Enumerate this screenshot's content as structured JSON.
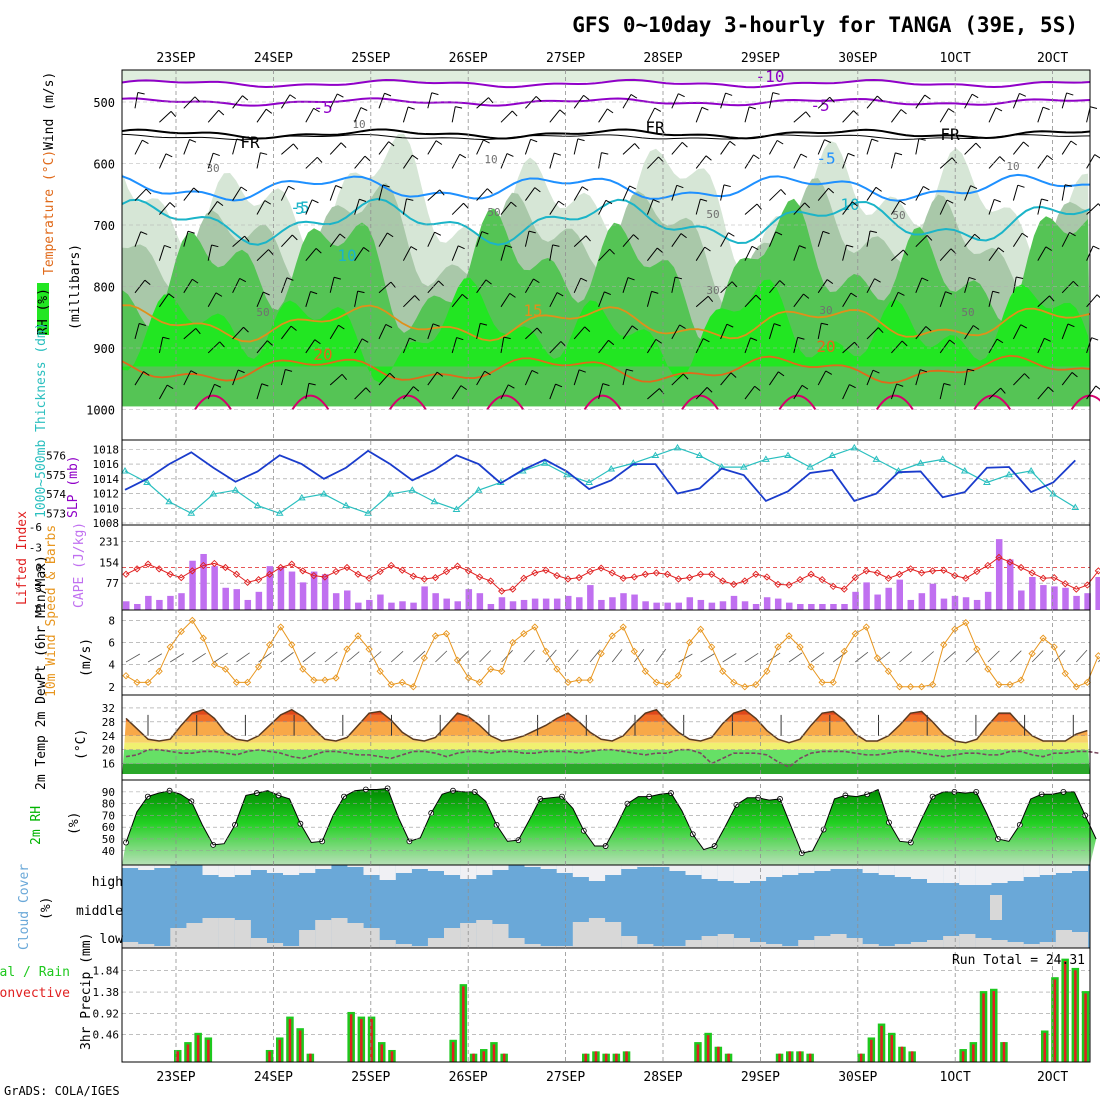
{
  "title": "GFS 0~10day 3-hourly for TANGA (39E, 5S)",
  "footer": "GrADS: COLA/IGES",
  "dates": [
    "23SEP",
    "24SEP",
    "25SEP",
    "26SEP",
    "27SEP",
    "28SEP",
    "29SEP",
    "30SEP",
    "1OCT",
    "2OCT"
  ],
  "colors": {
    "rh_light": "#d6e6d6",
    "rh_mid": "#a9c8a9",
    "rh_green": "#55c455",
    "rh_bright": "#22e622",
    "temp_purple": "#9000c8",
    "temp_black": "#000000",
    "temp_blue": "#1e90ff",
    "temp_cyan": "#1bb4c8",
    "temp_orange": "#e0901a",
    "temp_dark_orange": "#e06a1a",
    "temp_magenta": "#d4006c",
    "slp": "#1a3ccc",
    "thickness": "#2abfbf",
    "cape": "#c070f0",
    "lifted_index": "#e02020",
    "wind10m": "#e8961e",
    "rh2m": "#00b400",
    "cloud_bg": "#6aa8d8",
    "cloud_white": "#f0f0f4",
    "precip_total": "#1ec81e",
    "precip_conv": "#e02020"
  },
  "panels": {
    "upper": {
      "ylabel_rh": "RH (%)",
      "ylabel_temp": "Temperature (°C)",
      "ylabel_wind": "Wind (m/s)",
      "ylabel_p": "(millibars)",
      "yticks": [
        "500",
        "600",
        "700",
        "800",
        "900",
        "1000"
      ],
      "contour_labels": [
        "-10",
        "-5",
        "-5",
        "-5",
        "FR",
        "FR",
        "FR",
        "-5",
        "5",
        "10",
        "10",
        "15",
        "20",
        "20"
      ],
      "rh_labels": [
        "50",
        "30",
        "10",
        "50",
        "10",
        "30",
        "50",
        "50",
        "30",
        "10",
        "50"
      ]
    },
    "slp": {
      "ylabel_left": "1000~500mb Thickness (dm)",
      "ylabel_right": "SLP (mb)",
      "yticks_left": [
        "576",
        "575",
        "574",
        "573"
      ],
      "yticks_right": [
        "1018",
        "1016",
        "1014",
        "1012",
        "1010",
        "1008"
      ]
    },
    "cape": {
      "ylabel_left": "Lifted Index",
      "ylabel_right": "CAPE (J/kg)",
      "yticks_left": [
        "-6",
        "-3",
        "0",
        "3",
        "6"
      ],
      "yticks_right": [
        "231",
        "154",
        "77"
      ]
    },
    "wind10m": {
      "ylabel": "10m Wind Speed & Barbs",
      "ylabel_unit": "(m/s)",
      "yticks": [
        "8",
        "6",
        "4",
        "2"
      ]
    },
    "temp2m": {
      "ylabel": "2m Temp 2m DewPt (6hr Min/Max)",
      "ylabel_unit": "(°C)",
      "yticks": [
        "32",
        "28",
        "24",
        "20",
        "16"
      ]
    },
    "rh2m": {
      "ylabel": "2m RH",
      "ylabel_unit": "(%)",
      "yticks": [
        "90",
        "80",
        "70",
        "60",
        "50",
        "40"
      ]
    },
    "cloud": {
      "ylabel": "Cloud Cover",
      "ylabel_unit": "(%)",
      "levels": [
        "high",
        "middle",
        "low"
      ]
    },
    "precip": {
      "ylabel_left": "Total / Rain",
      "ylabel_left2": "Convective",
      "ylabel": "3hr Precip (mm)",
      "yticks": [
        "1.84",
        "1.38",
        "0.92",
        "0.46"
      ],
      "run_total": "Run Total = 24.31"
    }
  },
  "chart_data": [
    {
      "type": "line",
      "title": "SLP (mb)",
      "ylim": [
        1008,
        1019
      ],
      "x_step_hours": 6,
      "values": [
        1012.5,
        1014,
        1016,
        1017.6,
        1015.5,
        1013.6,
        1015,
        1017.2,
        1016,
        1014,
        1015.5,
        1017.8,
        1016,
        1013.8,
        1015.2,
        1017.2,
        1016,
        1013.4,
        1015.2,
        1016.6,
        1015,
        1012.6,
        1013.8,
        1016,
        1016,
        1012,
        1012.7,
        1015.4,
        1014.5,
        1011,
        1012.3,
        1014.8,
        1015.2,
        1011,
        1012,
        1014.9,
        1015,
        1011.5,
        1012.2,
        1015.5,
        1015.6,
        1012.2,
        1013.5,
        1016.5
      ]
    },
    {
      "type": "line",
      "title": "1000~500mb Thickness (dm)",
      "ylim": [
        572.6,
        576.6
      ],
      "x_step_hours": 6,
      "values": [
        575.2,
        574.6,
        573.6,
        573.0,
        574.0,
        574.2,
        573.4,
        573.0,
        573.8,
        574.0,
        573.4,
        573.0,
        574.0,
        574.2,
        573.6,
        573.2,
        574.2,
        574.6,
        575.2,
        575.6,
        575.0,
        574.6,
        575.3,
        575.6,
        576.0,
        576.4,
        576.0,
        575.4,
        575.4,
        575.8,
        576.0,
        575.4,
        576.0,
        576.4,
        575.8,
        575.2,
        575.6,
        575.8,
        575.2,
        574.6,
        575.0,
        575.2,
        574.0,
        573.3
      ]
    },
    {
      "type": "bar",
      "title": "CAPE (J/kg)",
      "ylim": [
        0,
        270
      ],
      "x_step_hours": 3,
      "values": [
        10,
        0,
        30,
        15,
        30,
        40,
        160,
        185,
        140,
        60,
        55,
        15,
        45,
        140,
        135,
        120,
        80,
        120,
        110,
        40,
        50,
        5,
        15,
        35,
        5,
        10,
        5,
        65,
        40,
        20,
        10,
        55,
        40,
        0,
        25,
        10,
        15,
        20,
        20,
        20,
        30,
        25,
        70,
        15,
        25,
        40,
        35,
        10,
        5,
        5,
        5,
        25,
        15,
        5,
        10,
        30,
        10,
        0,
        25,
        20,
        5,
        0,
        0,
        0,
        0,
        0,
        45,
        80,
        35,
        60,
        90,
        15,
        40,
        75,
        20,
        30,
        25,
        15,
        45,
        240,
        165,
        50,
        100,
        70,
        65,
        60,
        30,
        40,
        100
      ]
    },
    {
      "type": "line",
      "title": "Lifted Index",
      "ylim": [
        6,
        -6
      ],
      "x_step_hours": 3,
      "values": [
        1,
        0.2,
        -0.5,
        0.2,
        1,
        1.5,
        0.5,
        -0.3,
        -0.6,
        0,
        1,
        2.2,
        1.8,
        1,
        0,
        -0.5,
        0.5,
        1.2,
        1.4,
        0.6,
        0,
        1,
        1.6,
        0.6,
        -0.3,
        0.4,
        1.3,
        1.7,
        1.5,
        0.6,
        -0.2,
        0.5,
        1.4,
        2,
        3.5,
        3.2,
        1.6,
        0.8,
        0.4,
        1.2,
        1.7,
        1.5,
        0.6,
        0.1,
        0.8,
        1.6,
        1.4,
        1,
        0.8,
        1,
        1.7,
        1.5,
        1,
        1,
        2,
        2.5,
        2,
        1,
        1.4,
        2.5,
        2.6,
        1.8,
        1,
        1.8,
        2.8,
        3.2,
        1.5,
        0.5,
        0.8,
        1.6,
        1,
        0.2,
        0.8,
        0.5,
        0.4,
        1.2,
        1.6,
        0.6,
        -0.3,
        -1.5,
        -0.8,
        0,
        0.8,
        1.6,
        1.5,
        2.4,
        3.2,
        2.6,
        0.5
      ]
    },
    {
      "type": "line",
      "title": "10m Wind Speed (m/s)",
      "ylim": [
        1.8,
        8.4
      ],
      "x_step_hours": 3,
      "values": [
        3,
        2.4,
        2.4,
        3.4,
        5.6,
        7,
        8,
        6.4,
        4,
        3.6,
        2.4,
        2.4,
        3.8,
        5.8,
        7.4,
        5.8,
        3.6,
        2.6,
        2.6,
        2.8,
        5.4,
        6.6,
        5.4,
        3.4,
        2.2,
        2.4,
        2,
        4.6,
        6.6,
        6.8,
        4.4,
        2.8,
        2.4,
        3.6,
        3.4,
        6,
        6.8,
        7.4,
        5.2,
        3.6,
        2.4,
        2.6,
        2.6,
        5,
        6.6,
        7.4,
        5.2,
        3.4,
        2.4,
        2.2,
        3,
        6,
        7.2,
        5.6,
        3.4,
        2.4,
        2,
        2.2,
        3.4,
        5.6,
        6.6,
        5.6,
        3.8,
        2.4,
        2.4,
        5.2,
        6.8,
        7.4,
        4.6,
        3.4,
        2,
        2,
        2,
        2.2,
        5.8,
        7.2,
        7.8,
        5.4,
        3.6,
        2.2,
        2.2,
        2.6,
        5,
        6.4,
        5.6,
        3.2,
        2,
        2.4,
        4.8
      ]
    },
    {
      "type": "area",
      "title": "2m Temp (°C)",
      "ylim": [
        13,
        34
      ],
      "x_step_hours": 3,
      "values": [
        29,
        26,
        23,
        22.5,
        23,
        27,
        30.5,
        31.5,
        29,
        25,
        23,
        22.5,
        24,
        27,
        30,
        31.5,
        29.5,
        26,
        23,
        22.5,
        23.5,
        27,
        30.5,
        31,
        28.5,
        25,
        23,
        22.5,
        23.5,
        27,
        30.5,
        29.5,
        27,
        24,
        22.5,
        23,
        24,
        25.5,
        27,
        29,
        30.5,
        28,
        25,
        23,
        22.5,
        24,
        27.5,
        30.5,
        31.5,
        28,
        25,
        23,
        22.5,
        23.5,
        27.5,
        30.5,
        31.5,
        29,
        25.5,
        23,
        22,
        23,
        27,
        30.5,
        31,
        28.5,
        24.5,
        22.5,
        22.5,
        24,
        27,
        30.5,
        31,
        28,
        24.5,
        22.5,
        22,
        23,
        27,
        30.5,
        30.5,
        27,
        24,
        22.5,
        22.5,
        22.5,
        24.5,
        25.5
      ]
    },
    {
      "type": "line",
      "title": "2m DewPt (°C)",
      "ylim": [
        13,
        34
      ],
      "x_step_hours": 3,
      "values": [
        18,
        18.5,
        20,
        20,
        19.5,
        19,
        19,
        19.5,
        19.5,
        19,
        18.5,
        19.5,
        20,
        19.5,
        19,
        18,
        17.5,
        18.5,
        19.5,
        19.5,
        19,
        18.5,
        18.5,
        18,
        17.5,
        18.5,
        19.5,
        19.5,
        19,
        18,
        19,
        19.5,
        19.5,
        19,
        19.5,
        19.5,
        19,
        19,
        19.5,
        19.5,
        19.5,
        19,
        19.5,
        20,
        20,
        19.5,
        19,
        18.5,
        19,
        19,
        20,
        20,
        19,
        16,
        17.5,
        19,
        19,
        19,
        18.5,
        16.5,
        15,
        17.5,
        19,
        19.5,
        19.5,
        19.5,
        19,
        18.5,
        18.5,
        19,
        19.5,
        19.5,
        19,
        18.5,
        18,
        18.5,
        19,
        19,
        18.5,
        18.5,
        19.5,
        19.5,
        18.5,
        18,
        19,
        19,
        19.5,
        19.5,
        19
      ]
    },
    {
      "type": "area",
      "title": "2m RH (%)",
      "ylim": [
        33,
        95
      ],
      "x_step_hours": 3,
      "values": [
        47,
        73,
        86,
        89,
        91,
        88,
        82,
        62,
        45,
        46,
        62,
        87,
        89,
        91,
        87,
        84,
        63,
        47,
        48,
        70,
        86,
        91,
        92,
        92,
        93,
        68,
        48,
        51,
        72,
        88,
        91,
        90,
        90,
        82,
        62,
        48,
        49,
        66,
        84,
        85,
        86,
        76,
        57,
        44,
        44,
        61,
        80,
        86,
        86,
        88,
        89,
        74,
        54,
        41,
        44,
        61,
        79,
        85,
        85,
        83,
        84,
        61,
        38,
        40,
        58,
        84,
        87,
        86,
        88,
        92,
        64,
        48,
        47,
        67,
        86,
        90,
        90,
        89,
        90,
        71,
        50,
        48,
        62,
        84,
        88,
        88,
        90,
        90,
        70,
        50
      ]
    },
    {
      "type": "bar",
      "title": "3hr Precip Total (mm)",
      "ylim": [
        0,
        2.2
      ],
      "x_step_hours": 3,
      "values": [
        0,
        0,
        0,
        0,
        0,
        0.13,
        0.3,
        0.5,
        0.4,
        0,
        0,
        0,
        0,
        0,
        0.13,
        0.4,
        0.85,
        0.6,
        0.05,
        0,
        0,
        0,
        0.95,
        0.85,
        0.85,
        0.3,
        0.13,
        0,
        0,
        0,
        0,
        0,
        0.35,
        1.55,
        0.05,
        0.15,
        0.3,
        0.05,
        0,
        0,
        0,
        0,
        0,
        0,
        0,
        0.05,
        0.1,
        0.05,
        0.05,
        0.1,
        0,
        0,
        0,
        0,
        0,
        0,
        0.3,
        0.5,
        0.2,
        0.05,
        0,
        0,
        0,
        0,
        0.05,
        0.1,
        0.1,
        0.05,
        0,
        0,
        0,
        0,
        0.05,
        0.4,
        0.7,
        0.5,
        0.2,
        0.1,
        0,
        0,
        0,
        0,
        0.15,
        0.3,
        1.4,
        1.45,
        0.3,
        0,
        0,
        0,
        0.55,
        1.7,
        2.1,
        1.9,
        1.4
      ]
    },
    {
      "type": "bar",
      "title": "3hr Precip Convective (mm)",
      "ylim": [
        0,
        2.2
      ],
      "x_step_hours": 3,
      "values": [
        0,
        0,
        0,
        0,
        0,
        0.1,
        0.25,
        0.45,
        0.35,
        0,
        0,
        0,
        0,
        0,
        0.1,
        0.35,
        0.8,
        0.55,
        0.05,
        0,
        0,
        0,
        0.9,
        0.8,
        0.8,
        0.25,
        0.1,
        0,
        0,
        0,
        0,
        0,
        0.3,
        1.5,
        0.05,
        0.1,
        0.25,
        0.05,
        0,
        0,
        0,
        0,
        0,
        0,
        0,
        0.05,
        0.1,
        0.05,
        0.05,
        0.1,
        0,
        0,
        0,
        0,
        0,
        0,
        0.25,
        0.45,
        0.2,
        0.05,
        0,
        0,
        0,
        0,
        0.05,
        0.1,
        0.1,
        0.05,
        0,
        0,
        0,
        0,
        0.05,
        0.35,
        0.65,
        0.45,
        0.2,
        0.1,
        0,
        0,
        0,
        0,
        0.1,
        0.25,
        1.35,
        1.4,
        0.3,
        0,
        0,
        0,
        0.5,
        1.65,
        2.05,
        1.85,
        1.35
      ]
    }
  ]
}
